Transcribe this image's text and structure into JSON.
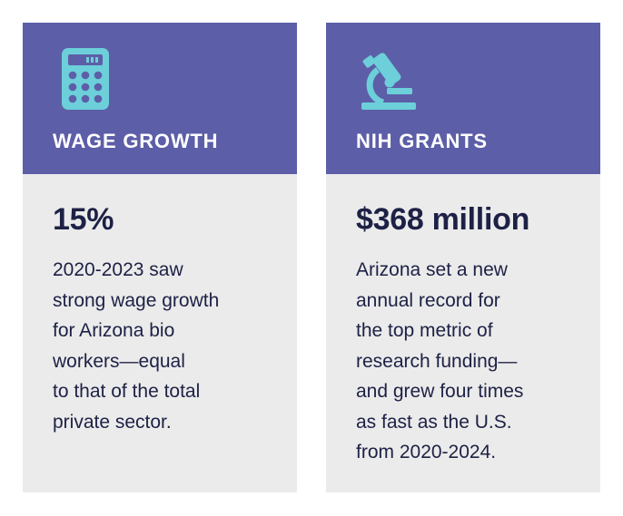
{
  "cards": [
    {
      "title": "WAGE GROWTH",
      "icon": "calculator-icon",
      "stat": "15%",
      "lines": [
        "2020-2023 saw",
        "strong wage growth",
        "for Arizona bio",
        "workers—equal",
        "to that of the total",
        "private sector."
      ]
    },
    {
      "title": "NIH GRANTS",
      "icon": "microscope-icon",
      "stat": "$368 million",
      "lines": [
        "Arizona set a new",
        "annual record for",
        "the top metric of",
        "research funding—",
        "and grew four times",
        "as fast as the U.S.",
        "from 2020-2024."
      ]
    }
  ],
  "colors": {
    "header": "#5d5ea8",
    "card_bg": "#ebebeb",
    "icon": "#6ccfd9",
    "text": "#1d2145",
    "title": "#ffffff"
  }
}
